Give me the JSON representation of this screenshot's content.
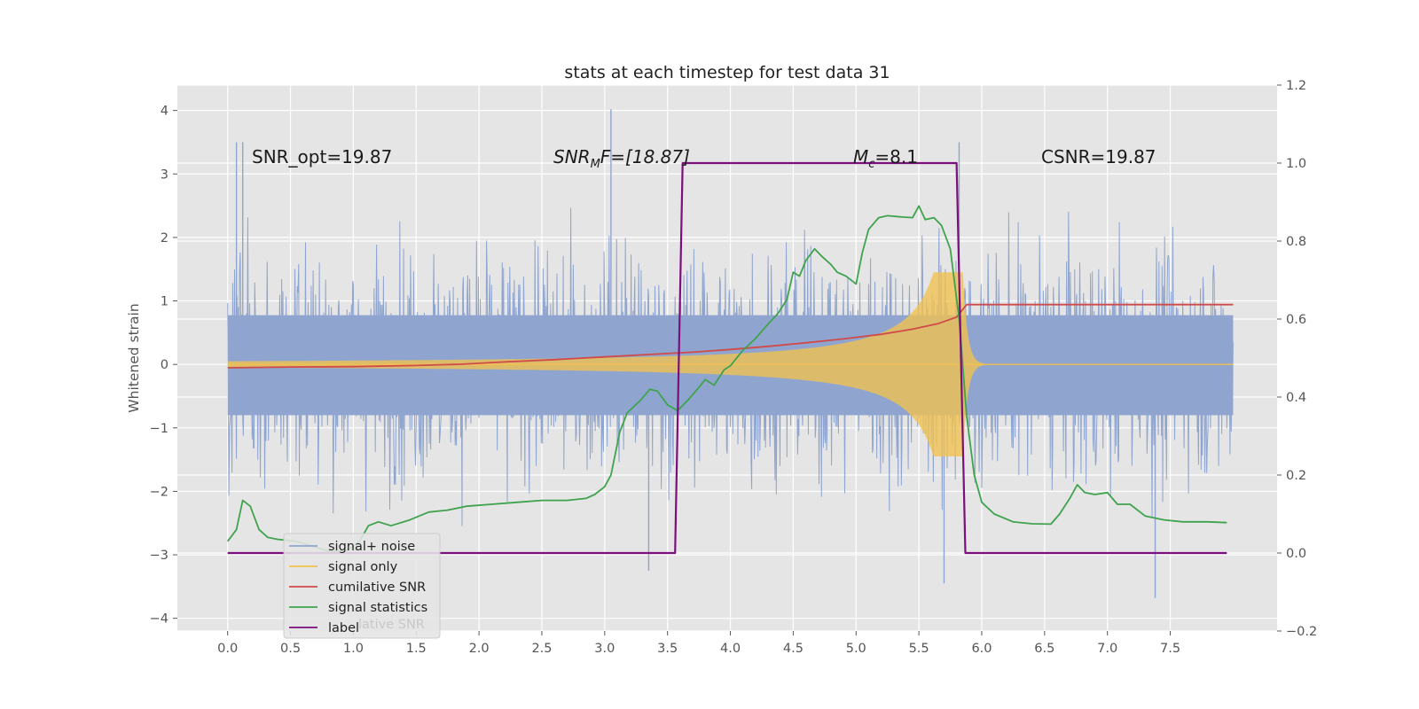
{
  "chart_data": {
    "type": "line",
    "title": "stats at each timestep for test data 31",
    "ylabel_left": "Whitened strain",
    "ylabel_right": "",
    "xlim": [
      -0.4,
      8.35
    ],
    "ylim_left": [
      -4.2,
      4.4
    ],
    "ylim_right": [
      -0.2,
      1.2
    ],
    "xticks": [
      0.0,
      0.5,
      1.0,
      1.5,
      2.0,
      2.5,
      3.0,
      3.5,
      4.0,
      4.5,
      5.0,
      5.5,
      6.0,
      6.5,
      7.0,
      7.5
    ],
    "xtick_labels": [
      "0.0",
      "0.5",
      "1.0",
      "1.5",
      "2.0",
      "2.5",
      "3.0",
      "3.5",
      "4.0",
      "4.5",
      "5.0",
      "5.5",
      "6.0",
      "6.5",
      "7.0",
      "7.5"
    ],
    "yticks_left": [
      -4,
      -3,
      -2,
      -1,
      0,
      1,
      2,
      3,
      4
    ],
    "ytick_labels_left": [
      "−4",
      "−3",
      "−2",
      "−1",
      "0",
      "1",
      "2",
      "3",
      "4"
    ],
    "yticks_right": [
      -0.2,
      0.0,
      0.2,
      0.4,
      0.6,
      0.8,
      1.0,
      1.2
    ],
    "ytick_labels_right": [
      "−0.2",
      "0.0",
      "0.2",
      "0.4",
      "0.6",
      "0.8",
      "1.0",
      "1.2"
    ],
    "grid": true,
    "legend_position": "lower-left",
    "annotations": {
      "snr_opt": "SNR_opt=19.87",
      "snr_mf_base": "SNR",
      "snr_mf_sub": "M",
      "snr_mf_rest": "F=[18.87]",
      "mc_base": "M",
      "mc_sub": "c",
      "mc_rest": "=8.1",
      "csnr": "CSNR=19.87"
    },
    "legend": {
      "items": [
        {
          "label": "signal+ noise",
          "color": "#8fa5cf"
        },
        {
          "label": "signal only",
          "color": "#f2c14e"
        },
        {
          "label": "cumilative SNR",
          "color": "#d04a4a"
        },
        {
          "label": "signal statistics",
          "color": "#3fa34d"
        },
        {
          "label": "label",
          "color": "#7b0f7b"
        }
      ],
      "overlapped_text": "lative SNR"
    },
    "series": [
      {
        "name": "signal+ noise",
        "axis": "left",
        "kind": "noise",
        "x_range": [
          0.0,
          8.0
        ],
        "band_low": -1.6,
        "band_high": 1.55,
        "spike_max": 4.05,
        "spike_min": -3.7,
        "peak_spikes": [
          {
            "x": 0.07,
            "y": 3.5
          },
          {
            "x": 0.12,
            "y": 3.5
          },
          {
            "x": 3.05,
            "y": 4.02
          },
          {
            "x": 5.82,
            "y": 3.5
          },
          {
            "x": 7.38,
            "y": -3.68
          },
          {
            "x": 5.7,
            "y": -3.45
          },
          {
            "x": 3.35,
            "y": -3.25
          }
        ]
      },
      {
        "name": "signal only",
        "axis": "left",
        "kind": "chirp",
        "x_range": [
          0.0,
          8.0
        ],
        "merger_x": 5.85,
        "peak_amplitude": 1.45
      },
      {
        "name": "cumilative SNR",
        "axis": "right",
        "points": [
          [
            0.0,
            0.475
          ],
          [
            0.5,
            0.477
          ],
          [
            1.0,
            0.478
          ],
          [
            1.5,
            0.481
          ],
          [
            1.85,
            0.484
          ],
          [
            2.2,
            0.49
          ],
          [
            2.6,
            0.496
          ],
          [
            3.0,
            0.503
          ],
          [
            3.4,
            0.51
          ],
          [
            3.7,
            0.515
          ],
          [
            4.0,
            0.522
          ],
          [
            4.3,
            0.53
          ],
          [
            4.6,
            0.539
          ],
          [
            4.9,
            0.549
          ],
          [
            5.2,
            0.561
          ],
          [
            5.45,
            0.574
          ],
          [
            5.65,
            0.588
          ],
          [
            5.8,
            0.605
          ],
          [
            5.88,
            0.637
          ],
          [
            8.0,
            0.637
          ]
        ]
      },
      {
        "name": "signal statistics",
        "axis": "right",
        "points": [
          [
            0.0,
            0.03
          ],
          [
            0.07,
            0.06
          ],
          [
            0.12,
            0.135
          ],
          [
            0.18,
            0.12
          ],
          [
            0.25,
            0.06
          ],
          [
            0.32,
            0.04
          ],
          [
            0.4,
            0.035
          ],
          [
            0.55,
            0.03
          ],
          [
            0.65,
            0.02
          ],
          [
            0.8,
            0.005
          ],
          [
            0.95,
            0.005
          ],
          [
            1.05,
            0.03
          ],
          [
            1.12,
            0.07
          ],
          [
            1.2,
            0.08
          ],
          [
            1.3,
            0.07
          ],
          [
            1.45,
            0.085
          ],
          [
            1.6,
            0.105
          ],
          [
            1.75,
            0.11
          ],
          [
            1.9,
            0.12
          ],
          [
            2.1,
            0.125
          ],
          [
            2.3,
            0.13
          ],
          [
            2.5,
            0.135
          ],
          [
            2.7,
            0.135
          ],
          [
            2.85,
            0.14
          ],
          [
            2.92,
            0.15
          ],
          [
            3.0,
            0.17
          ],
          [
            3.05,
            0.2
          ],
          [
            3.12,
            0.31
          ],
          [
            3.18,
            0.36
          ],
          [
            3.28,
            0.39
          ],
          [
            3.36,
            0.42
          ],
          [
            3.42,
            0.415
          ],
          [
            3.5,
            0.38
          ],
          [
            3.58,
            0.365
          ],
          [
            3.67,
            0.395
          ],
          [
            3.75,
            0.425
          ],
          [
            3.8,
            0.445
          ],
          [
            3.87,
            0.43
          ],
          [
            3.95,
            0.47
          ],
          [
            4.0,
            0.48
          ],
          [
            4.1,
            0.52
          ],
          [
            4.2,
            0.55
          ],
          [
            4.28,
            0.58
          ],
          [
            4.38,
            0.615
          ],
          [
            4.45,
            0.65
          ],
          [
            4.5,
            0.72
          ],
          [
            4.55,
            0.71
          ],
          [
            4.6,
            0.75
          ],
          [
            4.67,
            0.78
          ],
          [
            4.73,
            0.76
          ],
          [
            4.8,
            0.74
          ],
          [
            4.85,
            0.72
          ],
          [
            4.92,
            0.71
          ],
          [
            5.0,
            0.69
          ],
          [
            5.05,
            0.77
          ],
          [
            5.1,
            0.83
          ],
          [
            5.18,
            0.86
          ],
          [
            5.25,
            0.865
          ],
          [
            5.35,
            0.862
          ],
          [
            5.45,
            0.86
          ],
          [
            5.5,
            0.89
          ],
          [
            5.55,
            0.855
          ],
          [
            5.62,
            0.86
          ],
          [
            5.68,
            0.84
          ],
          [
            5.75,
            0.78
          ],
          [
            5.82,
            0.6
          ],
          [
            5.88,
            0.35
          ],
          [
            5.94,
            0.2
          ],
          [
            6.0,
            0.13
          ],
          [
            6.1,
            0.1
          ],
          [
            6.25,
            0.08
          ],
          [
            6.4,
            0.075
          ],
          [
            6.55,
            0.074
          ],
          [
            6.62,
            0.1
          ],
          [
            6.7,
            0.14
          ],
          [
            6.76,
            0.175
          ],
          [
            6.82,
            0.155
          ],
          [
            6.9,
            0.15
          ],
          [
            7.0,
            0.155
          ],
          [
            7.08,
            0.125
          ],
          [
            7.18,
            0.125
          ],
          [
            7.3,
            0.095
          ],
          [
            7.45,
            0.085
          ],
          [
            7.6,
            0.08
          ],
          [
            7.8,
            0.08
          ],
          [
            7.95,
            0.078
          ]
        ]
      },
      {
        "name": "label",
        "axis": "right",
        "points": [
          [
            0.0,
            0.0
          ],
          [
            3.56,
            0.0
          ],
          [
            3.62,
            1.0
          ],
          [
            5.8,
            1.0
          ],
          [
            5.87,
            0.0
          ],
          [
            7.95,
            0.0
          ]
        ]
      }
    ]
  }
}
